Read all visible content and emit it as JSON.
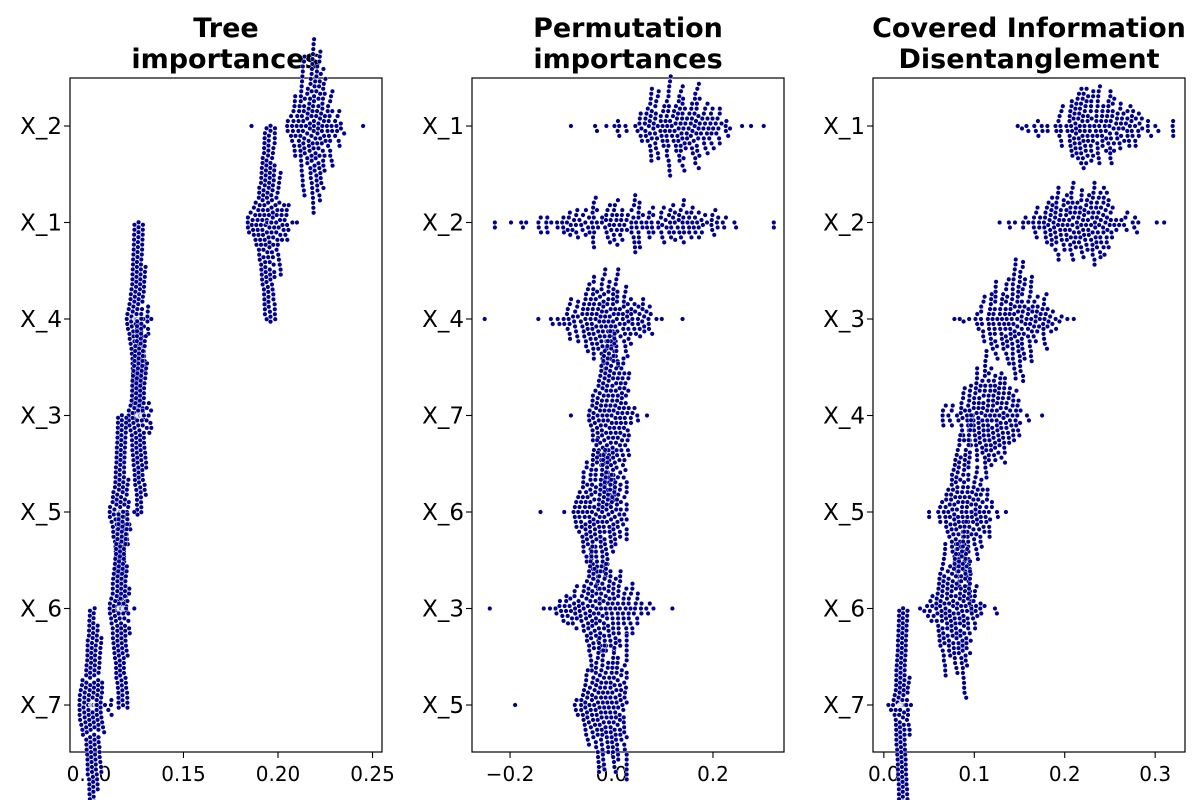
{
  "chart_data": [
    {
      "type": "swarm",
      "title": "Tree\nimportances",
      "categories": [
        "X_2",
        "X_1",
        "X_4",
        "X_3",
        "X_5",
        "X_6",
        "X_7"
      ],
      "xlim": [
        0.09,
        0.255
      ],
      "xticks": [
        0.1,
        0.15,
        0.2,
        0.25
      ],
      "xtick_labels": [
        "0.10",
        "0.15",
        "0.20",
        "0.25"
      ],
      "point_color": "#00008b",
      "series": [
        {
          "category": "X_2",
          "center": 0.218,
          "spread": 0.0065,
          "min": 0.186,
          "max": 0.245
        },
        {
          "category": "X_1",
          "center": 0.195,
          "spread": 0.0042,
          "min": 0.184,
          "max": 0.21
        },
        {
          "category": "X_4",
          "center": 0.126,
          "spread": 0.0022,
          "min": 0.12,
          "max": 0.133
        },
        {
          "category": "X_3",
          "center": 0.127,
          "spread": 0.0022,
          "min": 0.121,
          "max": 0.133
        },
        {
          "category": "X_5",
          "center": 0.117,
          "spread": 0.0022,
          "min": 0.111,
          "max": 0.124
        },
        {
          "category": "X_6",
          "center": 0.117,
          "spread": 0.0022,
          "min": 0.111,
          "max": 0.124
        },
        {
          "category": "X_7",
          "center": 0.102,
          "spread": 0.003,
          "min": 0.095,
          "max": 0.112
        }
      ]
    },
    {
      "type": "swarm",
      "title": "Permutation\nimportances",
      "categories": [
        "X_1",
        "X_2",
        "X_4",
        "X_7",
        "X_6",
        "X_3",
        "X_5"
      ],
      "xlim": [
        -0.275,
        0.34
      ],
      "xticks": [
        -0.2,
        0.0,
        0.2
      ],
      "xtick_labels": [
        "−0.2",
        "0.0",
        "0.2"
      ],
      "point_color": "#00008b",
      "series": [
        {
          "category": "X_1",
          "center": 0.13,
          "spread": 0.05,
          "min": -0.08,
          "max": 0.3
        },
        {
          "category": "X_2",
          "center": 0.05,
          "spread": 0.11,
          "min": -0.23,
          "max": 0.32
        },
        {
          "category": "X_4",
          "center": -0.01,
          "spread": 0.045,
          "min": -0.25,
          "max": 0.14
        },
        {
          "category": "X_7",
          "center": 0.0,
          "spread": 0.022,
          "min": -0.08,
          "max": 0.07
        },
        {
          "category": "X_6",
          "center": -0.02,
          "spread": 0.028,
          "min": -0.14,
          "max": 0.03
        },
        {
          "category": "X_3",
          "center": -0.02,
          "spread": 0.04,
          "min": -0.24,
          "max": 0.12
        },
        {
          "category": "X_5",
          "center": -0.01,
          "spread": 0.028,
          "min": -0.19,
          "max": 0.03
        }
      ]
    },
    {
      "type": "swarm",
      "title": "Covered Information\nDisentanglement",
      "categories": [
        "X_1",
        "X_2",
        "X_3",
        "X_4",
        "X_5",
        "X_6",
        "X_7"
      ],
      "xlim": [
        -0.012,
        0.333
      ],
      "xticks": [
        0.0,
        0.1,
        0.2,
        0.3
      ],
      "xtick_labels": [
        "0.0",
        "0.1",
        "0.2",
        "0.3"
      ],
      "point_color": "#00008b",
      "series": [
        {
          "category": "X_1",
          "center": 0.235,
          "spread": 0.03,
          "min": 0.148,
          "max": 0.32
        },
        {
          "category": "X_2",
          "center": 0.215,
          "spread": 0.03,
          "min": 0.128,
          "max": 0.31
        },
        {
          "category": "X_3",
          "center": 0.145,
          "spread": 0.022,
          "min": 0.078,
          "max": 0.21
        },
        {
          "category": "X_4",
          "center": 0.115,
          "spread": 0.02,
          "min": 0.065,
          "max": 0.175
        },
        {
          "category": "X_5",
          "center": 0.09,
          "spread": 0.014,
          "min": 0.05,
          "max": 0.135
        },
        {
          "category": "X_6",
          "center": 0.08,
          "spread": 0.014,
          "min": 0.04,
          "max": 0.125
        },
        {
          "category": "X_7",
          "center": 0.02,
          "spread": 0.004,
          "min": 0.005,
          "max": 0.03
        }
      ]
    }
  ]
}
